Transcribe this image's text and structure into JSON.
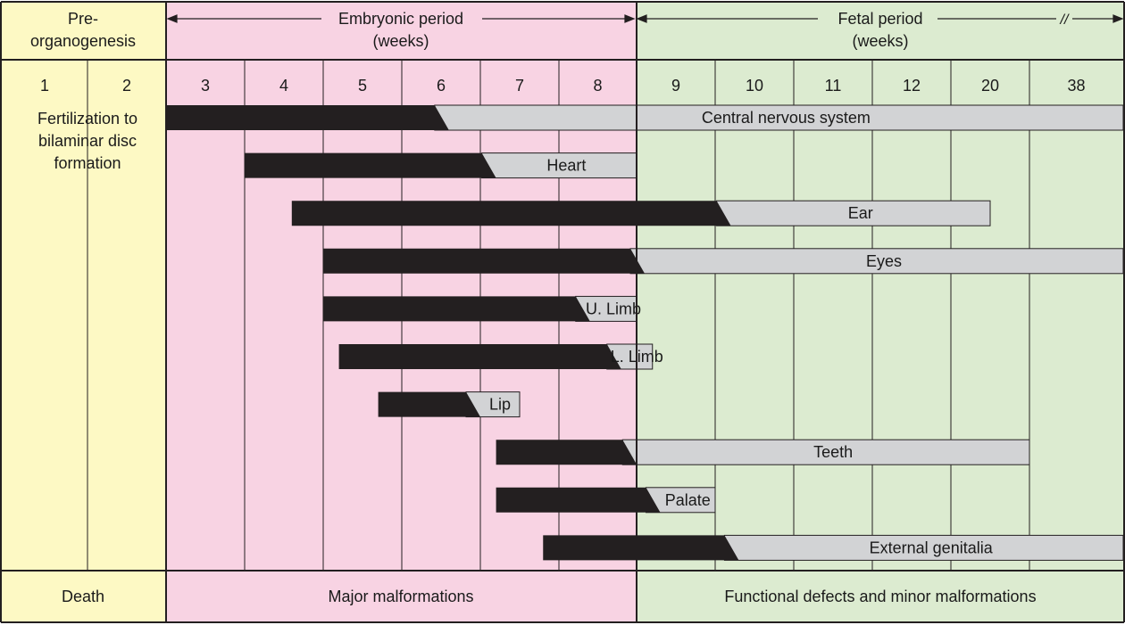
{
  "colors": {
    "pre": "#fdf9c4",
    "embryonic": "#f8d3e3",
    "fetal": "#dcebd0",
    "sensitive": "#231f20",
    "less_sensitive": "#d2d3d5",
    "line": "#231f20"
  },
  "periods": {
    "pre_label_line1": "Pre-",
    "pre_label_line2": "organogenesis",
    "embryonic_line1": "Embryonic period",
    "embryonic_line2": "(weeks)",
    "fetal_line1": "Fetal period",
    "fetal_line2": "(weeks)",
    "break_mark": "//"
  },
  "weeks": [
    "1",
    "2",
    "3",
    "4",
    "5",
    "6",
    "7",
    "8",
    "9",
    "10",
    "11",
    "12",
    "20",
    "38"
  ],
  "pre_note": {
    "line1": "Fertilization to",
    "line2": "bilaminar disc",
    "line3": "formation"
  },
  "outcomes": {
    "pre": "Death",
    "embryonic": "Major malformations",
    "fetal": "Functional defects and minor malformations"
  },
  "organs": [
    {
      "name": "Central nervous system",
      "start_week": 3,
      "black_end_week": 6.1,
      "end_week": 38,
      "extends_past_end": true
    },
    {
      "name": "Heart",
      "start_week": 3.5,
      "black_end_week": 6.7,
      "end_week": 8.5,
      "extends_past_end": false
    },
    {
      "name": "Ear",
      "start_week": 4.1,
      "black_end_week": 9.7,
      "end_week": 20,
      "extends_past_end": false
    },
    {
      "name": "Eyes",
      "start_week": 4.5,
      "black_end_week": 8.6,
      "end_week": 38,
      "extends_past_end": true
    },
    {
      "name": "U. Limb",
      "start_week": 4.5,
      "black_end_week": 7.9,
      "end_week": 8.5,
      "extends_past_end": false
    },
    {
      "name": "L. Limb",
      "start_week": 4.7,
      "black_end_week": 8.3,
      "end_week": 8.7,
      "extends_past_end": false
    },
    {
      "name": "Lip",
      "start_week": 5.2,
      "black_end_week": 6.5,
      "end_week": 7.0,
      "extends_past_end": false
    },
    {
      "name": "Teeth",
      "start_week": 6.7,
      "black_end_week": 8.5,
      "end_week": 38,
      "extends_past_end": false
    },
    {
      "name": "Palate",
      "start_week": 6.7,
      "black_end_week": 8.8,
      "end_week": 9.5,
      "extends_past_end": false
    },
    {
      "name": "External genitalia",
      "start_week": 7.3,
      "black_end_week": 9.8,
      "end_week": 38,
      "extends_past_end": true
    }
  ]
}
